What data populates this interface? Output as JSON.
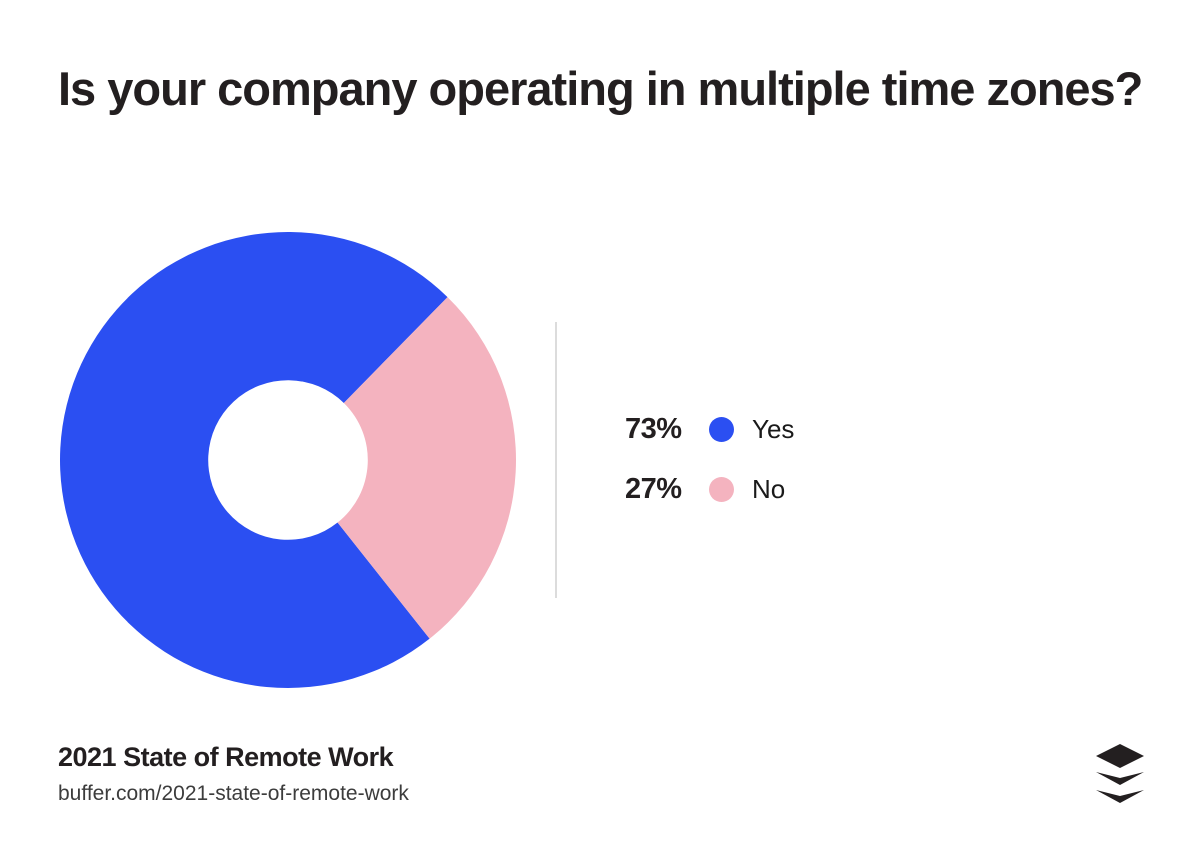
{
  "header": {
    "title": "Is your company operating in multiple time zones?"
  },
  "chart_data": {
    "type": "pie",
    "subtype": "donut",
    "title": "Is your company operating in multiple time zones?",
    "categories": [
      "Yes",
      "No"
    ],
    "values": [
      73,
      27
    ],
    "unit": "%",
    "colors": [
      "#2b4ff2",
      "#f4b3bf"
    ],
    "inner_radius_ratio": 0.35,
    "start_angle_deg": 141.6,
    "legend_position": "right",
    "slices": [
      {
        "label": "Yes",
        "value": 73,
        "pct_label": "73%",
        "color": "#2b4ff2"
      },
      {
        "label": "No",
        "value": 27,
        "pct_label": "27%",
        "color": "#f4b3bf"
      }
    ]
  },
  "footer": {
    "source_title": "2021 State of Remote Work",
    "source_url": "buffer.com/2021-state-of-remote-work",
    "logo_icon": "buffer-layers-logo"
  },
  "colors": {
    "background": "#ffffff",
    "text": "#231f20",
    "divider": "#dcdcdc",
    "logo": "#231f20"
  }
}
